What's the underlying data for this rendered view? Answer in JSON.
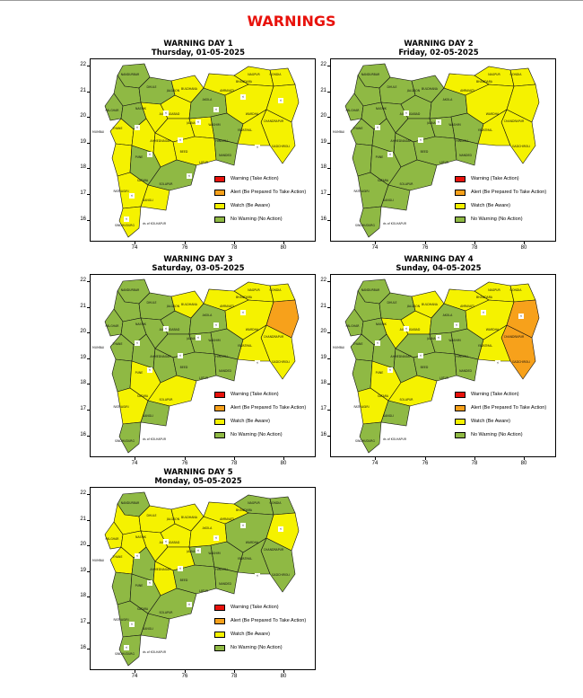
{
  "page_title": "WARNINGS",
  "colors": {
    "warning": "#e8120c",
    "alert": "#f7a11b",
    "watch": "#f5f200",
    "no_warning": "#8fb944"
  },
  "legend": [
    {
      "label": "Warning (Take Action)",
      "color": "#e8120c"
    },
    {
      "label": "Alert (Be Prepared To Take Action)",
      "color": "#f7a11b"
    },
    {
      "label": "Watch (Be Aware)",
      "color": "#f5f200"
    },
    {
      "label": "No Warning (No Action)",
      "color": "#8fb944"
    }
  ],
  "axis": {
    "x_ticks": [
      "74",
      "76",
      "78",
      "80"
    ],
    "y_ticks": [
      "22",
      "21",
      "20",
      "19",
      "18",
      "17",
      "16"
    ]
  },
  "map_labels": {
    "mumbai": "MUMBAI",
    "kolhapur": "ds of KOLHAPUR"
  },
  "panels": [
    {
      "title": "WARNING DAY 1",
      "date": "Thursday, 01-05-2025",
      "districts": {
        "d1": "no",
        "d2": "no",
        "d3": "no",
        "d4": "no",
        "d5": "no",
        "d6": "watch",
        "d7": "watch",
        "d8": "watch",
        "d9": "watch",
        "d10": "watch",
        "d11": "watch",
        "d12": "watch",
        "d13": "watch",
        "d14": "watch",
        "d15": "watch",
        "d16": "no",
        "d17": "no",
        "d18": "watch",
        "d19": "watch",
        "d20": "watch",
        "d21": "no",
        "d22": "no",
        "d23": "no",
        "d24": "watch",
        "d25": "watch",
        "d26": "watch",
        "d27": "watch",
        "d28": "watch",
        "d29": "watch",
        "d30": "watch"
      }
    },
    {
      "title": "WARNING DAY 2",
      "date": "Friday, 02-05-2025",
      "districts": {
        "d1": "no",
        "d2": "no",
        "d3": "no",
        "d4": "no",
        "d5": "no",
        "d6": "no",
        "d7": "no",
        "d8": "no",
        "d9": "no",
        "d10": "no",
        "d11": "no",
        "d12": "no",
        "d13": "no",
        "d14": "no",
        "d15": "no",
        "d16": "no",
        "d17": "no",
        "d18": "no",
        "d19": "no",
        "d20": "no",
        "d21": "no",
        "d22": "no",
        "d23": "no",
        "d24": "watch",
        "d25": "watch",
        "d26": "watch",
        "d27": "watch",
        "d28": "watch",
        "d29": "watch",
        "d30": "watch"
      }
    },
    {
      "title": "WARNING DAY 3",
      "date": "Saturday, 03-05-2025",
      "districts": {
        "d1": "no",
        "d2": "no",
        "d3": "no",
        "d4": "no",
        "d5": "no",
        "d6": "no",
        "d7": "no",
        "d8": "watch",
        "d9": "no",
        "d10": "no",
        "d11": "no",
        "d12": "no",
        "d13": "no",
        "d14": "no",
        "d15": "no",
        "d16": "watch",
        "d17": "watch",
        "d18": "watch",
        "d19": "no",
        "d20": "no",
        "d21": "no",
        "d22": "no",
        "d23": "no",
        "d24": "watch",
        "d25": "watch",
        "d26": "watch",
        "d27": "watch",
        "d28": "alert",
        "d29": "watch",
        "d30": "watch"
      }
    },
    {
      "title": "WARNING DAY 4",
      "date": "Sunday, 04-05-2025",
      "districts": {
        "d1": "no",
        "d2": "no",
        "d3": "no",
        "d4": "no",
        "d5": "no",
        "d6": "watch",
        "d7": "watch",
        "d8": "watch",
        "d9": "no",
        "d10": "no",
        "d11": "no",
        "d12": "no",
        "d13": "no",
        "d14": "no",
        "d15": "no",
        "d16": "watch",
        "d17": "watch",
        "d18": "watch",
        "d19": "no",
        "d20": "no",
        "d21": "no",
        "d22": "no",
        "d23": "no",
        "d24": "watch",
        "d25": "watch",
        "d26": "watch",
        "d27": "watch",
        "d28": "alert",
        "d29": "alert",
        "d30": "watch"
      }
    },
    {
      "title": "WARNING DAY 5",
      "date": "Monday, 05-05-2025",
      "districts": {
        "d1": "no",
        "d2": "watch",
        "d3": "watch",
        "d4": "watch",
        "d5": "watch",
        "d6": "watch",
        "d7": "watch",
        "d8": "watch",
        "d9": "watch",
        "d10": "watch",
        "d11": "no",
        "d12": "watch",
        "d13": "no",
        "d14": "no",
        "d15": "no",
        "d16": "no",
        "d17": "no",
        "d18": "no",
        "d19": "no",
        "d20": "no",
        "d21": "watch",
        "d22": "no",
        "d23": "no",
        "d24": "watch",
        "d25": "no",
        "d26": "no",
        "d27": "no",
        "d28": "watch",
        "d29": "no",
        "d30": "no"
      }
    }
  ]
}
